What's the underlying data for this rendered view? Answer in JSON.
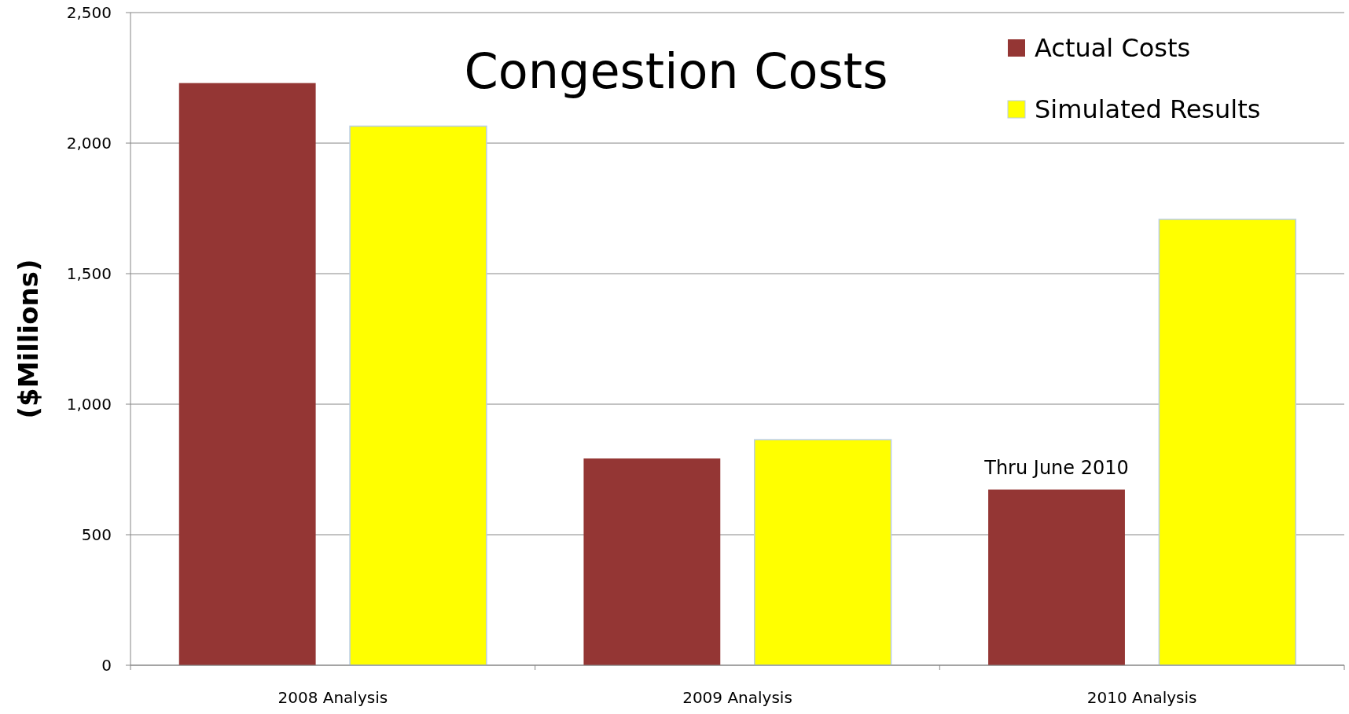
{
  "chart_data": {
    "type": "bar",
    "title": "Congestion Costs",
    "ylabel": "($Millions)",
    "categories": [
      "2008 Analysis",
      "2009 Analysis",
      "2010 Analysis"
    ],
    "series": [
      {
        "name": "Actual Costs",
        "color": "#943634",
        "values": [
          2230,
          792,
          673
        ]
      },
      {
        "name": "Simulated Results",
        "color": "#ffff00",
        "values": [
          2065,
          864,
          1708
        ]
      }
    ],
    "ylim": [
      0,
      2500
    ],
    "yticks": [
      0,
      {
        "value": 500,
        "label": "500"
      },
      {
        "value": 1000,
        "label": "1,000"
      },
      {
        "value": 1500,
        "label": "1,500"
      },
      {
        "value": 2000,
        "label": "2,000"
      },
      {
        "value": 2500,
        "label": "2,500"
      }
    ],
    "grid": "y",
    "legend": "top right",
    "annotations": [
      "Thru June 2010"
    ]
  }
}
